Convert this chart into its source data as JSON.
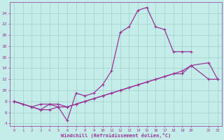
{
  "xlabel": "Windchill (Refroidissement éolien,°C)",
  "bg_color": "#c4ece8",
  "grid_color": "#a0d0cc",
  "line_color": "#993399",
  "line1_x": [
    0,
    1,
    2,
    3,
    4,
    5,
    6,
    7,
    8,
    9,
    10,
    11,
    12,
    13,
    14,
    15,
    16,
    17,
    18,
    19,
    20
  ],
  "line1_y": [
    8,
    7.5,
    7,
    6.5,
    7.5,
    7,
    4.5,
    9.5,
    9,
    9.5,
    11,
    13.5,
    20.5,
    21.5,
    24.5,
    25,
    21.5,
    21,
    17,
    17,
    17
  ],
  "line2_x": [
    0,
    1,
    2,
    3,
    4,
    5,
    6,
    7,
    8,
    9,
    10,
    11,
    12,
    13,
    14,
    15,
    16,
    17,
    18,
    19,
    20,
    22,
    23
  ],
  "line2_y": [
    8,
    7.5,
    7,
    7.5,
    7.5,
    7.5,
    7,
    7.5,
    8,
    8.5,
    9.0,
    9.5,
    10,
    10.5,
    11,
    11.5,
    12,
    12.5,
    13,
    13.0,
    14.5,
    15,
    12
  ],
  "line3_x": [
    0,
    2,
    3,
    4,
    5,
    6,
    7,
    8,
    9,
    10,
    11,
    12,
    13,
    14,
    15,
    16,
    17,
    18,
    19,
    20,
    22,
    23
  ],
  "line3_y": [
    8,
    7,
    6.5,
    6.5,
    7,
    7,
    7.5,
    8,
    8.5,
    9.0,
    9.5,
    10,
    10.5,
    11,
    11.5,
    12,
    12.5,
    13,
    13.5,
    14.5,
    12,
    12
  ],
  "xlim": [
    -0.5,
    23.5
  ],
  "ylim": [
    3.5,
    26.0
  ],
  "xtick_vals": [
    0,
    1,
    2,
    3,
    4,
    5,
    6,
    7,
    8,
    9,
    10,
    11,
    12,
    13,
    14,
    15,
    16,
    17,
    18,
    19,
    20,
    22,
    23
  ],
  "xtick_labels": [
    "0",
    "1",
    "2",
    "3",
    "4",
    "5",
    "6",
    "7",
    "8",
    "9",
    "10",
    "11",
    "12",
    "13",
    "14",
    "15",
    "16",
    "17",
    "18",
    "19",
    "20",
    "22",
    "23"
  ],
  "ytick_vals": [
    4,
    6,
    8,
    10,
    12,
    14,
    16,
    18,
    20,
    22,
    24
  ],
  "ytick_labels": [
    "4",
    "6",
    "8",
    "10",
    "12",
    "14",
    "16",
    "18",
    "20",
    "22",
    "24"
  ]
}
